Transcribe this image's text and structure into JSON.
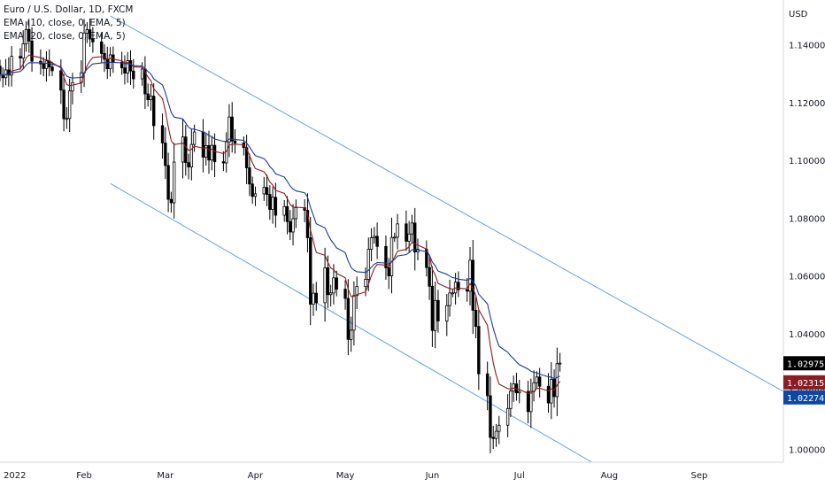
{
  "legend": {
    "symbol": "Euro / U.S. Dollar, 1D, FXCM",
    "ema_fast": "EMA (10, close, 0, EMA, 5)",
    "ema_slow": "EMA (20, close, 0, EMA, 5)"
  },
  "axis": {
    "currency": "USD"
  },
  "colors": {
    "up": "#ffffff",
    "down": "#000000",
    "wick": "#000000",
    "ema_fast": "#8b1c22",
    "ema_slow": "#1c3a9a",
    "channel": "#64a0e6",
    "last_tag": "#000000",
    "ema_fast_tag": "#8b1c22",
    "ema_slow_tag": "#0d47a1"
  },
  "chart_data": {
    "type": "candlestick",
    "y_range": [
      0.9955,
      1.1555
    ],
    "y_ticks": [
      "1.14000",
      "1.12000",
      "1.10000",
      "1.08000",
      "1.06000",
      "1.04000",
      "1.02000",
      "1.00000"
    ],
    "x_labels": [
      {
        "label": "2022",
        "date": "2022-01-03"
      },
      {
        "label": "Feb",
        "date": "2022-02-01"
      },
      {
        "label": "Mar",
        "date": "2022-03-01"
      },
      {
        "label": "Apr",
        "date": "2022-04-01"
      },
      {
        "label": "May",
        "date": "2022-05-02"
      },
      {
        "label": "Jun",
        "date": "2022-06-01"
      },
      {
        "label": "Jul",
        "date": "2022-07-01"
      },
      {
        "label": "Aug",
        "date": "2022-08-01"
      },
      {
        "label": "Sep",
        "date": "2022-09-01"
      }
    ],
    "x_range": [
      "2022-01-03",
      "2022-09-30"
    ],
    "start_date": "2022-01-03",
    "end_date": "2022-08-12",
    "closes": [
      1.1296,
      1.1286,
      1.1313,
      1.1295,
      1.136,
      1.1354,
      1.1403,
      1.1453,
      1.1413,
      1.1343,
      1.1334,
      1.1318,
      1.1344,
      1.1323,
      1.131,
      1.1243,
      1.1144,
      1.1145,
      1.124,
      1.1269,
      1.1303,
      1.144,
      1.1452,
      1.142,
      1.141,
      1.137,
      1.135,
      1.1317,
      1.1365,
      1.134,
      1.132,
      1.1302,
      1.1345,
      1.1309,
      1.1282,
      1.1316,
      1.123,
      1.121,
      1.1222,
      1.112,
      1.106,
      1.0982,
      1.0865,
      1.0853,
      1.0994,
      1.1081,
      1.0992,
      1.0977,
      1.1055,
      1.1098,
      1.1011,
      1.1051,
      1.1001,
      1.1052,
      1.0995,
      1.0991,
      1.1064,
      1.115,
      1.1067,
      1.106,
      1.1044,
      1.0974,
      1.0918,
      1.0875,
      1.0884,
      1.0906,
      1.0882,
      1.083,
      1.0872,
      1.081,
      1.084,
      1.0788,
      1.0752,
      1.0798,
      1.0836,
      1.0827,
      1.0732,
      1.0502,
      1.054,
      1.0507,
      1.0628,
      1.0535,
      1.0541,
      1.0593,
      1.0554,
      1.0522,
      1.038,
      1.0412,
      1.0532,
      1.0563,
      1.0588,
      1.0692,
      1.0732,
      1.0737,
      1.0702,
      1.0628,
      1.06,
      1.0733,
      1.0734,
      1.078,
      1.072,
      1.0745,
      1.0783,
      1.0683,
      1.0692,
      1.0629,
      1.0564,
      1.0411,
      1.0515,
      1.0444,
      1.0497,
      1.0541,
      1.0541,
      1.0578,
      1.0552,
      1.0547,
      1.0654,
      1.0481,
      1.0425,
      1.0261,
      1.0185,
      1.0041,
      1.0037,
      1.0062,
      1.0083,
      1.0141,
      1.0201,
      1.0226,
      1.0195,
      1.02,
      1.013,
      1.02,
      1.023,
      1.025,
      1.0218,
      1.016,
      1.0242,
      1.0182,
      1.0296,
      1.0298
    ]
  },
  "last_values": {
    "close": "1.02975",
    "ema_fast": "1.02315",
    "ema_slow": "1.02274"
  },
  "channel": {
    "upper": {
      "x1": "2022-02-10",
      "y1": 1.15,
      "x2": "2022-09-30",
      "y2": 1.02
    },
    "lower": {
      "x1": "2022-02-10",
      "y1": 1.092,
      "x2": "2022-07-26",
      "y2": 0.9955
    }
  }
}
